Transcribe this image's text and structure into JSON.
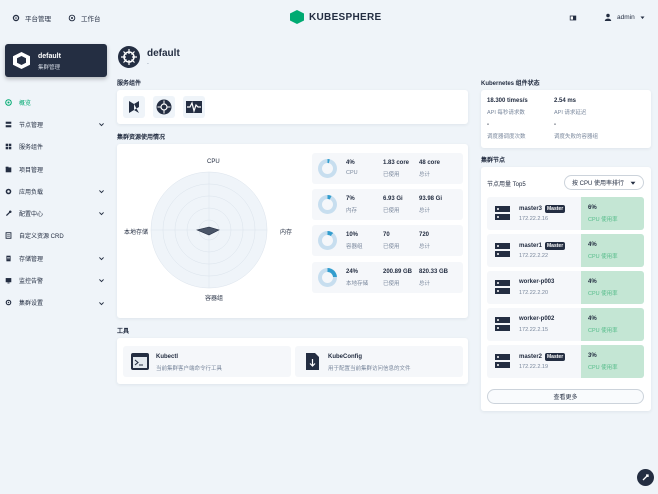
{
  "topbar": {
    "platform_label": "平台管理",
    "workbench_label": "工作台",
    "logo_text": "KUBESPHERE",
    "user_label": "admin"
  },
  "cluster": {
    "name": "default",
    "subtitle": "集群管理"
  },
  "nav": [
    {
      "label": "概览",
      "icon": "overview-icon",
      "active": true,
      "expandable": false
    },
    {
      "label": "节点管理",
      "icon": "node-icon",
      "expandable": true
    },
    {
      "label": "服务组件",
      "icon": "components-icon",
      "expandable": false
    },
    {
      "label": "项目管理",
      "icon": "project-icon",
      "expandable": false
    },
    {
      "label": "应用负载",
      "icon": "workload-icon",
      "expandable": true
    },
    {
      "label": "配置中心",
      "icon": "config-icon",
      "expandable": true
    },
    {
      "label": "自定义资源 CRD",
      "icon": "crd-icon",
      "expandable": false
    },
    {
      "label": "存储管理",
      "icon": "storage-icon",
      "expandable": true
    },
    {
      "label": "监控告警",
      "icon": "monitor-icon",
      "expandable": true
    },
    {
      "label": "集群设置",
      "icon": "settings-icon",
      "expandable": true
    }
  ],
  "page": {
    "title": "default",
    "subtitle": "-"
  },
  "service_components": {
    "title": "服务组件",
    "icons": [
      "kubesphere-icon",
      "kubernetes-icon",
      "monitoring-icon"
    ]
  },
  "resource_usage": {
    "title": "集群资源使用情况",
    "radar_labels": {
      "top": "CPU",
      "right": "内存",
      "bottom": "容器组",
      "left": "本地存储"
    },
    "rows": [
      {
        "percent": "4%",
        "name": "CPU",
        "used": "1.83 core",
        "used_label": "已使用",
        "total": "48 core",
        "total_label": "总计",
        "fill": 0.04
      },
      {
        "percent": "7%",
        "name": "内存",
        "used": "6.93 Gi",
        "used_label": "已使用",
        "total": "93.98 Gi",
        "total_label": "总计",
        "fill": 0.07
      },
      {
        "percent": "10%",
        "name": "容器组",
        "used": "70",
        "used_label": "已使用",
        "total": "720",
        "total_label": "总计",
        "fill": 0.1
      },
      {
        "percent": "24%",
        "name": "本地存储",
        "used": "200.89 GB",
        "used_label": "已使用",
        "total": "820.33 GB",
        "total_label": "总计",
        "fill": 0.24
      }
    ]
  },
  "tools": {
    "title": "工具",
    "items": [
      {
        "name": "Kubectl",
        "desc": "当前集群客户端命令行工具",
        "icon": "terminal-icon"
      },
      {
        "name": "KubeConfig",
        "desc": "用于配置当前集群访问信息的文件",
        "icon": "file-download-icon"
      }
    ]
  },
  "k8s_status": {
    "title": "Kubernetes 组件状态",
    "metrics": [
      {
        "value": "18.300 times/s",
        "label": "API 每秒请求数"
      },
      {
        "value": "2.54 ms",
        "label": "API 请求延迟"
      },
      {
        "value": "-",
        "label": "调度器调度次数"
      },
      {
        "value": "-",
        "label": "调度失败的容器组"
      }
    ]
  },
  "cluster_nodes": {
    "title": "集群节点",
    "top_label": "节点用量 Top5",
    "sort_label": "按 CPU 使用率排行",
    "more_label": "查看更多",
    "master_tag": "Master",
    "nodes": [
      {
        "name": "master3",
        "master": true,
        "ip": "172.22.2.16",
        "percent": "6%",
        "metric": "CPU 使用率"
      },
      {
        "name": "master1",
        "master": true,
        "ip": "172.22.2.22",
        "percent": "4%",
        "metric": "CPU 使用率"
      },
      {
        "name": "worker-p003",
        "master": false,
        "ip": "172.22.2.20",
        "percent": "4%",
        "metric": "CPU 使用率"
      },
      {
        "name": "worker-p002",
        "master": false,
        "ip": "172.22.2.15",
        "percent": "4%",
        "metric": "CPU 使用率"
      },
      {
        "name": "master2",
        "master": true,
        "ip": "172.22.2.19",
        "percent": "3%",
        "metric": "CPU 使用率"
      }
    ]
  },
  "colors": {
    "accent": "#00aa72",
    "dark": "#242e42",
    "donut": "#329dce",
    "donut_track": "#c7deef",
    "util_bg": "#c4e6d4"
  }
}
